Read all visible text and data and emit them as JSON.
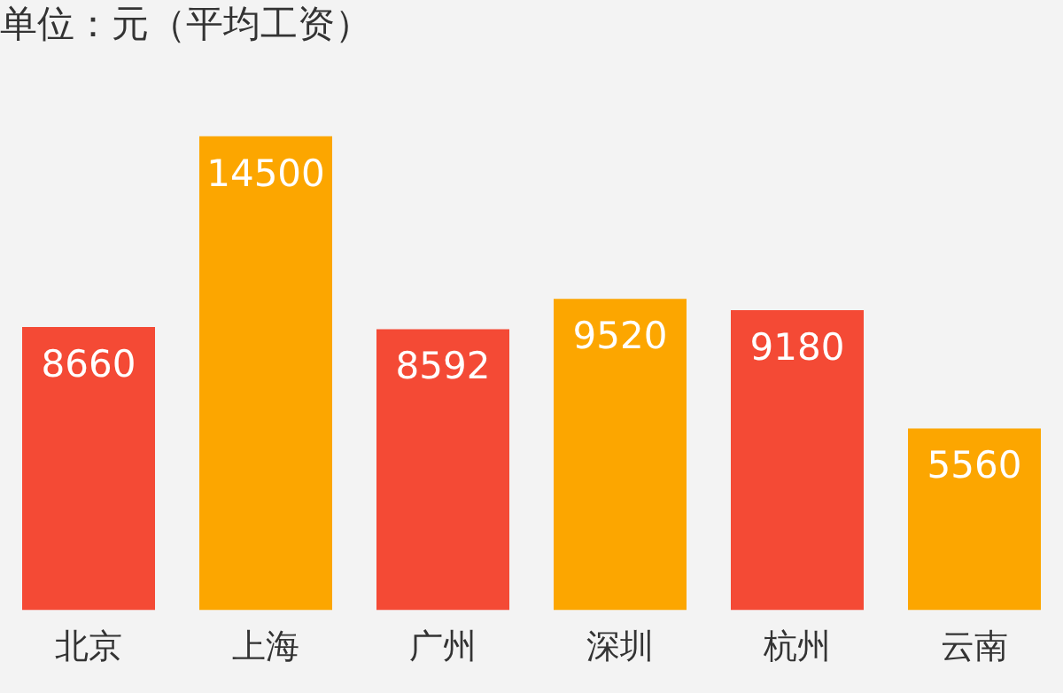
{
  "chart_data": {
    "type": "bar",
    "title": "单位：元（平均工资）",
    "categories": [
      "北京",
      "上海",
      "广州",
      "深圳",
      "杭州",
      "云南"
    ],
    "values": [
      8660,
      14500,
      8592,
      9520,
      9180,
      5560
    ],
    "colors": [
      "#f44a35",
      "#fca600",
      "#f44a35",
      "#fca600",
      "#f44a35",
      "#fca600"
    ],
    "data_labels": true,
    "grid": false,
    "legend": false
  }
}
